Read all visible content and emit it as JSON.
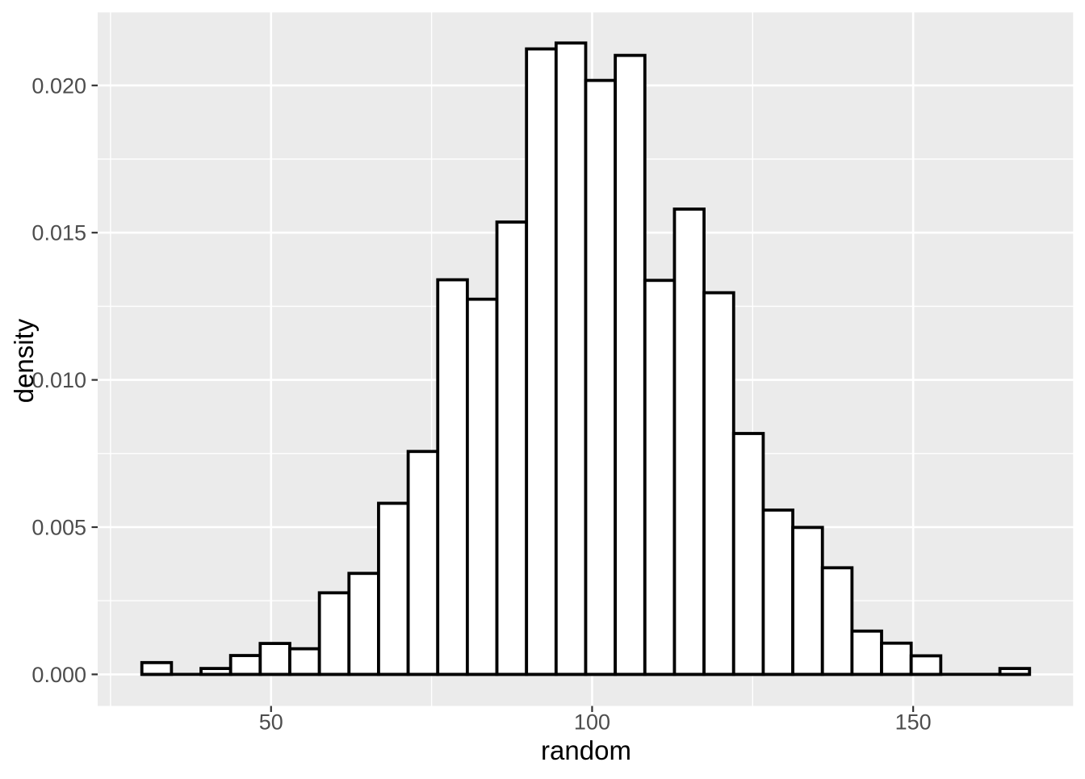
{
  "page": {
    "background": "#FFFFFF"
  },
  "chart_data": {
    "type": "bar",
    "subtype": "histogram",
    "title": "",
    "xlabel": "random",
    "ylabel": "density",
    "legend": "none",
    "grid": "major+minor",
    "bin_start": 29.88,
    "bin_width": 4.608,
    "bin_centers": [
      32.18,
      36.79,
      41.4,
      46.01,
      50.62,
      55.22,
      59.83,
      64.44,
      69.05,
      73.66,
      78.27,
      82.87,
      87.48,
      92.09,
      96.7,
      101.31,
      105.92,
      110.52,
      115.13,
      119.74,
      124.35,
      128.96,
      133.57,
      138.17,
      142.78,
      147.39,
      152.0,
      156.61,
      161.22,
      165.82
    ],
    "values": [
      0.0004,
      0.0,
      0.0002,
      0.00064,
      0.00105,
      0.00087,
      0.00277,
      0.00343,
      0.00581,
      0.00757,
      0.0134,
      0.01274,
      0.01536,
      0.02124,
      0.02144,
      0.02017,
      0.02102,
      0.01338,
      0.0158,
      0.01296,
      0.00818,
      0.00558,
      0.00499,
      0.00362,
      0.00147,
      0.00106,
      0.00063,
      0.0,
      0.0,
      0.0002
    ],
    "x_ticks": [
      {
        "value": 50,
        "label": "50"
      },
      {
        "value": 100,
        "label": "100"
      },
      {
        "value": 150,
        "label": "150"
      }
    ],
    "y_ticks": [
      {
        "value": 0.0,
        "label": "0.000"
      },
      {
        "value": 0.005,
        "label": "0.005"
      },
      {
        "value": 0.01,
        "label": "0.010"
      },
      {
        "value": 0.015,
        "label": "0.015"
      },
      {
        "value": 0.02,
        "label": "0.020"
      }
    ],
    "x_minor_ticks": [
      25,
      75,
      125,
      175
    ],
    "y_minor_ticks": [
      0.0025,
      0.0075,
      0.0125,
      0.0175,
      0.0225
    ],
    "xlim": [
      23.0,
      175.0
    ],
    "ylim": [
      -0.001072,
      0.022517
    ],
    "style": {
      "panel_bg": "#EBEBEB",
      "grid_color": "#FFFFFF",
      "bar_fill": "#FFFFFF",
      "bar_stroke": "#000000",
      "tick_text_color": "#4D4D4D",
      "axis_title_color": "#000000",
      "tick_mark_color": "#333333"
    }
  }
}
